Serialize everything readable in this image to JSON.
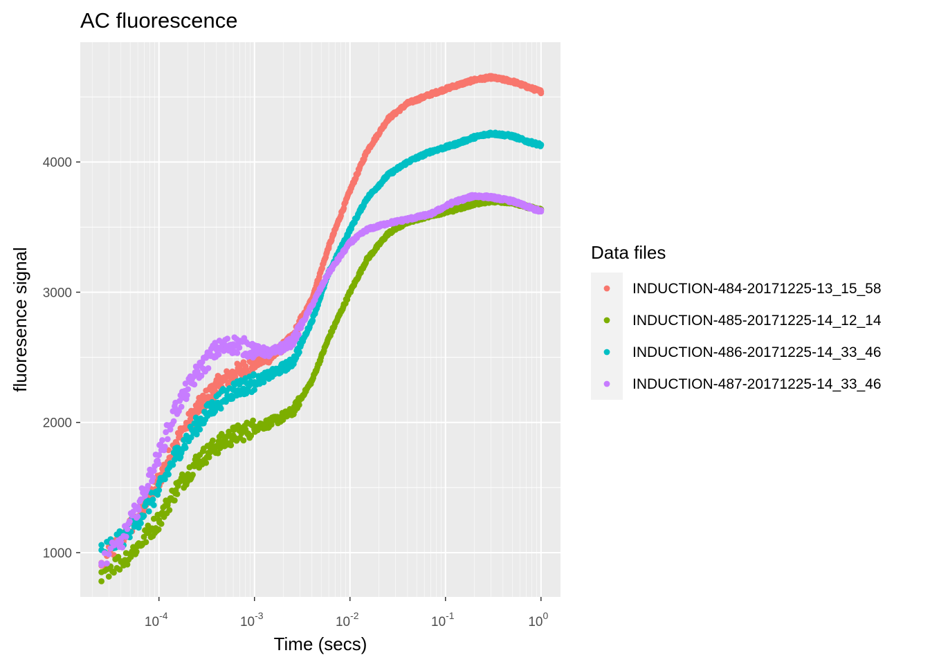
{
  "chart_data": {
    "type": "scatter",
    "title": "AC fluorescence",
    "xlabel": "Time (secs)",
    "ylabel": "fluoresence signal",
    "x_scale": "log10",
    "xlim": [
      1.5e-05,
      1.6
    ],
    "ylim": [
      660,
      4920
    ],
    "x_ticks": [
      {
        "value": 0.0001,
        "base": "10",
        "exp": "-4"
      },
      {
        "value": 0.001,
        "base": "10",
        "exp": "-3"
      },
      {
        "value": 0.01,
        "base": "10",
        "exp": "-2"
      },
      {
        "value": 0.1,
        "base": "10",
        "exp": "-1"
      },
      {
        "value": 1,
        "base": "10",
        "exp": "0"
      }
    ],
    "y_ticks": [
      1000,
      2000,
      3000,
      4000
    ],
    "grid": true,
    "legend": {
      "title": "Data files",
      "position": "right"
    },
    "series": [
      {
        "name": "INDUCTION-484-20171225-13_15_58",
        "color": "#F8766D",
        "points": [
          [
            2.5e-05,
            900
          ],
          [
            4e-05,
            1100
          ],
          [
            6e-05,
            1280
          ],
          [
            0.0001,
            1560
          ],
          [
            0.00015,
            1850
          ],
          [
            0.00025,
            2100
          ],
          [
            0.0004,
            2280
          ],
          [
            0.0006,
            2370
          ],
          [
            0.001,
            2450
          ],
          [
            0.0015,
            2500
          ],
          [
            0.0025,
            2650
          ],
          [
            0.004,
            2950
          ],
          [
            0.006,
            3350
          ],
          [
            0.01,
            3780
          ],
          [
            0.015,
            4080
          ],
          [
            0.025,
            4330
          ],
          [
            0.04,
            4450
          ],
          [
            0.07,
            4520
          ],
          [
            0.12,
            4580
          ],
          [
            0.2,
            4630
          ],
          [
            0.3,
            4650
          ],
          [
            0.5,
            4620
          ],
          [
            0.7,
            4580
          ],
          [
            1.0,
            4540
          ]
        ]
      },
      {
        "name": "INDUCTION-485-20171225-14_12_14",
        "color": "#7CAE00",
        "points": [
          [
            2.5e-05,
            850
          ],
          [
            4e-05,
            930
          ],
          [
            6e-05,
            1050
          ],
          [
            0.0001,
            1250
          ],
          [
            0.00015,
            1480
          ],
          [
            0.00025,
            1700
          ],
          [
            0.0004,
            1820
          ],
          [
            0.0006,
            1900
          ],
          [
            0.001,
            1960
          ],
          [
            0.0015,
            2000
          ],
          [
            0.0025,
            2080
          ],
          [
            0.004,
            2320
          ],
          [
            0.006,
            2650
          ],
          [
            0.01,
            3000
          ],
          [
            0.015,
            3250
          ],
          [
            0.025,
            3450
          ],
          [
            0.04,
            3540
          ],
          [
            0.07,
            3590
          ],
          [
            0.12,
            3630
          ],
          [
            0.2,
            3680
          ],
          [
            0.3,
            3700
          ],
          [
            0.5,
            3690
          ],
          [
            0.7,
            3660
          ],
          [
            1.0,
            3630
          ]
        ]
      },
      {
        "name": "INDUCTION-486-20171225-14_33_46",
        "color": "#00BFC4",
        "points": [
          [
            2.5e-05,
            1020
          ],
          [
            4e-05,
            1100
          ],
          [
            6e-05,
            1250
          ],
          [
            0.0001,
            1480
          ],
          [
            0.00015,
            1750
          ],
          [
            0.00025,
            1980
          ],
          [
            0.0004,
            2150
          ],
          [
            0.0006,
            2250
          ],
          [
            0.001,
            2310
          ],
          [
            0.0015,
            2370
          ],
          [
            0.0025,
            2460
          ],
          [
            0.004,
            2780
          ],
          [
            0.006,
            3150
          ],
          [
            0.01,
            3480
          ],
          [
            0.015,
            3720
          ],
          [
            0.025,
            3900
          ],
          [
            0.04,
            4000
          ],
          [
            0.07,
            4080
          ],
          [
            0.12,
            4130
          ],
          [
            0.2,
            4190
          ],
          [
            0.3,
            4220
          ],
          [
            0.5,
            4200
          ],
          [
            0.7,
            4160
          ],
          [
            1.0,
            4130
          ]
        ]
      },
      {
        "name": "INDUCTION-487-20171225-14_33_46",
        "color": "#C77CFF",
        "points": [
          [
            2.5e-05,
            920
          ],
          [
            4e-05,
            1080
          ],
          [
            6e-05,
            1350
          ],
          [
            0.0001,
            1750
          ],
          [
            0.00015,
            2100
          ],
          [
            0.00025,
            2380
          ],
          [
            0.0004,
            2560
          ],
          [
            0.0006,
            2600
          ],
          [
            0.001,
            2560
          ],
          [
            0.0015,
            2530
          ],
          [
            0.0025,
            2620
          ],
          [
            0.004,
            2900
          ],
          [
            0.006,
            3150
          ],
          [
            0.01,
            3380
          ],
          [
            0.015,
            3480
          ],
          [
            0.025,
            3530
          ],
          [
            0.04,
            3560
          ],
          [
            0.07,
            3600
          ],
          [
            0.12,
            3690
          ],
          [
            0.2,
            3740
          ],
          [
            0.3,
            3730
          ],
          [
            0.5,
            3700
          ],
          [
            0.7,
            3660
          ],
          [
            1.0,
            3620
          ]
        ]
      }
    ]
  }
}
